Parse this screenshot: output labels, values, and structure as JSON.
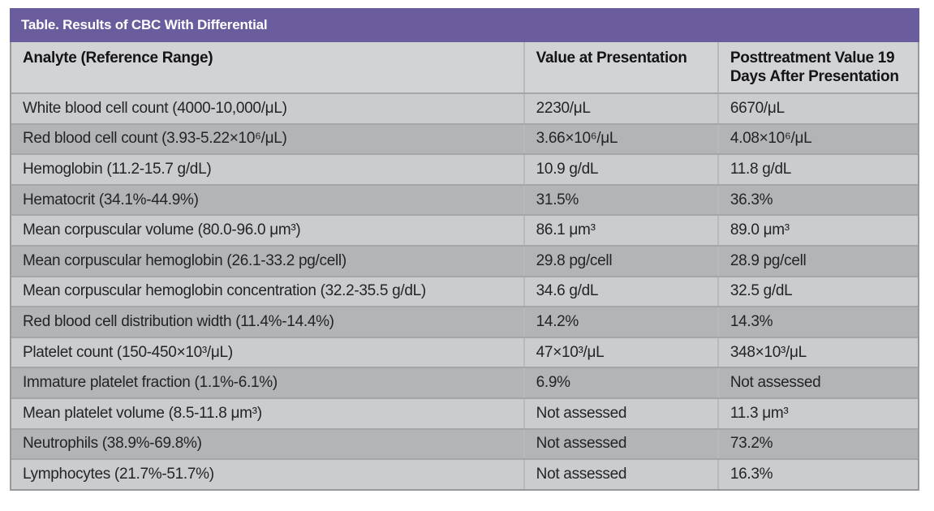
{
  "table": {
    "title": "Table. Results of CBC With Differential",
    "columns": {
      "analyte": "Analyte (Reference Range)",
      "value_at_presentation": "Value at Presentation",
      "posttreatment": "Posttreatment Value 19 Days After Presentation"
    },
    "rows": [
      {
        "analyte": "White blood cell count (4000-10,000/μL)",
        "value_at_presentation": "2230/μL",
        "posttreatment": "6670/μL"
      },
      {
        "analyte": "Red blood cell count (3.93-5.22×10⁶/μL)",
        "value_at_presentation": "3.66×10⁶/μL",
        "posttreatment": "4.08×10⁶/μL"
      },
      {
        "analyte": "Hemoglobin (11.2-15.7 g/dL)",
        "value_at_presentation": "10.9 g/dL",
        "posttreatment": "11.8 g/dL"
      },
      {
        "analyte": "Hematocrit (34.1%-44.9%)",
        "value_at_presentation": "31.5%",
        "posttreatment": "36.3%"
      },
      {
        "analyte": "Mean corpuscular volume (80.0-96.0 μm³)",
        "value_at_presentation": "86.1 μm³",
        "posttreatment": "89.0 μm³"
      },
      {
        "analyte": "Mean corpuscular hemoglobin (26.1-33.2 pg/cell)",
        "value_at_presentation": "29.8 pg/cell",
        "posttreatment": "28.9 pg/cell"
      },
      {
        "analyte": "Mean corpuscular hemoglobin concentration (32.2-35.5 g/dL)",
        "value_at_presentation": "34.6 g/dL",
        "posttreatment": "32.5 g/dL"
      },
      {
        "analyte": "Red blood cell distribution width (11.4%-14.4%)",
        "value_at_presentation": "14.2%",
        "posttreatment": "14.3%"
      },
      {
        "analyte": "Platelet count (150-450×10³/μL)",
        "value_at_presentation": "47×10³/μL",
        "posttreatment": "348×10³/μL"
      },
      {
        "analyte": "Immature platelet fraction (1.1%-6.1%)",
        "value_at_presentation": "6.9%",
        "posttreatment": "Not assessed"
      },
      {
        "analyte": "Mean platelet volume (8.5-11.8 μm³)",
        "value_at_presentation": "Not assessed",
        "posttreatment": "11.3 μm³"
      },
      {
        "analyte": "Neutrophils (38.9%-69.8%)",
        "value_at_presentation": "Not assessed",
        "posttreatment": "73.2%"
      },
      {
        "analyte": "Lymphocytes (21.7%-51.7%)",
        "value_at_presentation": "Not assessed",
        "posttreatment": "16.3%"
      }
    ],
    "colors": {
      "title_bar": "#6a5c9d",
      "header_row_bg": "#d2d3d5",
      "row_dark": "#b2b4b6",
      "row_light": "#cbccce",
      "outer_border": "#96989b"
    }
  }
}
